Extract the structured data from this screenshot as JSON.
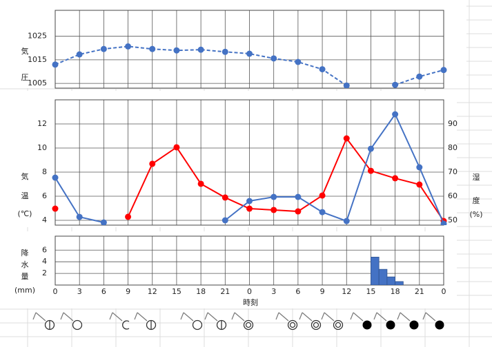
{
  "chart_data": [
    {
      "type": "line",
      "ylabel": [
        "気",
        "圧"
      ],
      "x": [
        0,
        3,
        6,
        9,
        12,
        15,
        18,
        21,
        24,
        27,
        30,
        33,
        36,
        39,
        42,
        45,
        48
      ],
      "xlim": [
        0,
        48
      ],
      "ylim": [
        1003,
        1036
      ],
      "yticks": [
        1005,
        1015,
        1025
      ],
      "grid": true,
      "series": [
        {
          "name": "気圧",
          "color": "#4472c4",
          "dashed": true,
          "axis": "y",
          "values": [
            1013.0,
            1017.3,
            1019.6,
            1020.7,
            1019.6,
            1019.0,
            1019.3,
            1018.4,
            1017.6,
            1015.6,
            1014.1,
            1011.0,
            1004.1,
            null,
            1004.4,
            1007.9,
            1010.7
          ]
        }
      ]
    },
    {
      "type": "line",
      "ylabel": [
        "気",
        "温",
        "(℃)"
      ],
      "y2label": [
        "湿",
        "度",
        "(%)"
      ],
      "x": [
        0,
        3,
        6,
        9,
        12,
        15,
        18,
        21,
        24,
        27,
        30,
        33,
        36,
        39,
        42,
        45,
        48
      ],
      "xlim": [
        0,
        48
      ],
      "ylim": [
        3.6,
        14
      ],
      "yticks": [
        4,
        6,
        8,
        10,
        12
      ],
      "y2lim": [
        48,
        100
      ],
      "y2ticks": [
        50,
        60,
        70,
        80,
        90
      ],
      "grid": true,
      "series": [
        {
          "name": "気温",
          "color": "#ff0000",
          "dashed": false,
          "axis": "y",
          "values": [
            4.97,
            null,
            null,
            4.29,
            8.69,
            10.06,
            7.03,
            5.89,
            4.97,
            4.86,
            4.74,
            6.06,
            10.8,
            8.11,
            7.49,
            6.97,
            3.94
          ]
        },
        {
          "name": "湿度",
          "color": "#4472c4",
          "dashed": false,
          "axis": "y2",
          "values": [
            67.7,
            51.4,
            49.1,
            null,
            null,
            null,
            null,
            50.0,
            58.0,
            59.7,
            59.7,
            53.4,
            49.7,
            79.7,
            94.0,
            72.0,
            48.6
          ]
        }
      ]
    },
    {
      "type": "bar",
      "ylabel": [
        "降",
        "水",
        "量",
        "(mm)"
      ],
      "xlabel": "時刻",
      "x": [
        39,
        40,
        41,
        42
      ],
      "xlim": [
        0,
        48
      ],
      "ylim": [
        0,
        8.4
      ],
      "yticks": [
        2,
        4,
        6
      ],
      "grid": true,
      "xticks": [
        0,
        3,
        6,
        9,
        12,
        15,
        18,
        21,
        {
          "value": 24,
          "label": "0"
        },
        {
          "value": 27,
          "label": "3"
        },
        {
          "value": 30,
          "label": "6"
        },
        {
          "value": 33,
          "label": "9"
        },
        {
          "value": 36,
          "label": "12"
        },
        {
          "value": 39,
          "label": "15"
        },
        {
          "value": 42,
          "label": "18"
        },
        {
          "value": 45,
          "label": "21"
        },
        {
          "value": 48,
          "label": "0"
        }
      ],
      "color": "#4472c4",
      "values": [
        4.8,
        2.7,
        1.4,
        0.6
      ]
    }
  ]
}
